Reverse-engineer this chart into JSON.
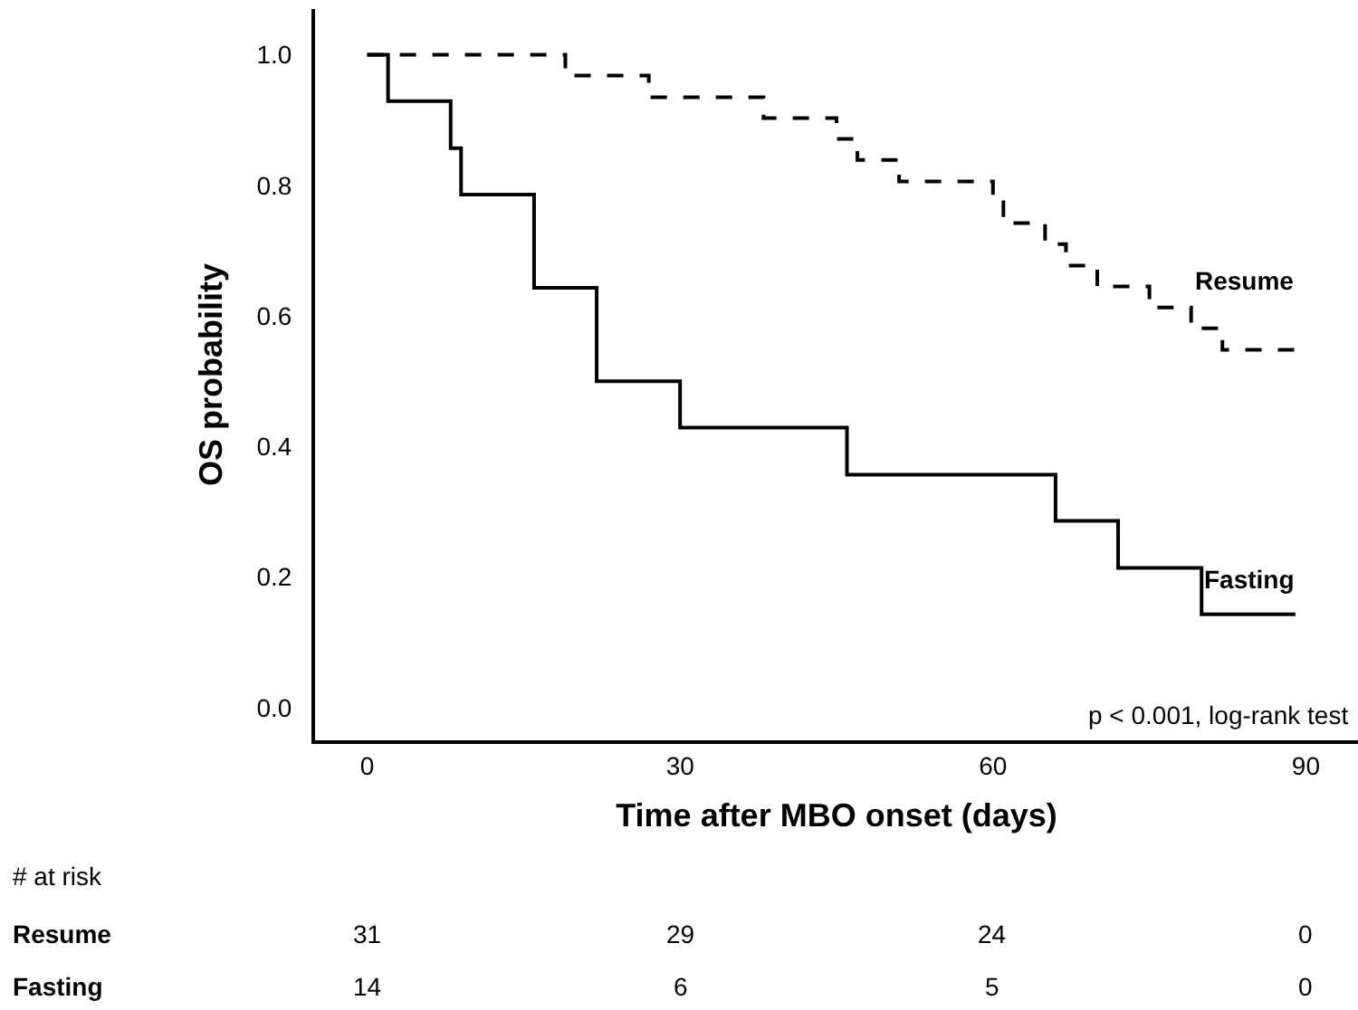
{
  "chart_data": {
    "type": "step",
    "xlabel": "Time after MBO onset (days)",
    "ylabel": "OS probability",
    "series": [
      {
        "name": "Resume",
        "color": "#000000",
        "line_style": "dashed",
        "x": [
          0,
          19,
          27,
          38,
          45,
          47,
          51,
          60,
          61,
          65,
          67,
          70,
          75,
          79,
          82,
          89
        ],
        "values": [
          1,
          0.968,
          0.935,
          0.903,
          0.871,
          0.839,
          0.806,
          0.774,
          0.742,
          0.71,
          0.677,
          0.645,
          0.613,
          0.581,
          0.548,
          0.548
        ]
      },
      {
        "name": "Fasting",
        "color": "#000000",
        "line_style": "solid",
        "x": [
          0,
          2,
          8,
          9,
          16,
          22,
          30,
          46,
          66,
          72,
          80,
          89
        ],
        "values": [
          1,
          0.929,
          0.857,
          0.786,
          0.643,
          0.5,
          0.429,
          0.357,
          0.286,
          0.214,
          0.143,
          0.143
        ]
      }
    ],
    "xlim": [
      -5,
      95
    ],
    "xticks": [
      0,
      30,
      60,
      90
    ],
    "ylim": [
      -0.05,
      1.07
    ],
    "yticks": [
      {
        "value": 0,
        "label": "0.0"
      },
      {
        "value": 0.2,
        "label": "0.2"
      },
      {
        "value": 0.4,
        "label": "0.4"
      },
      {
        "value": 0.6,
        "label": "0.6"
      },
      {
        "value": 0.8,
        "label": "0.8"
      },
      {
        "value": 1,
        "label": "1.0"
      }
    ],
    "grid": false,
    "legend": false,
    "marker": "none",
    "annotations": [
      "p < 0.001, log-rank test",
      "# at risk",
      "Resume",
      "31",
      "29",
      "24",
      "0",
      "Fasting",
      "14",
      "6",
      "5",
      "0"
    ]
  }
}
